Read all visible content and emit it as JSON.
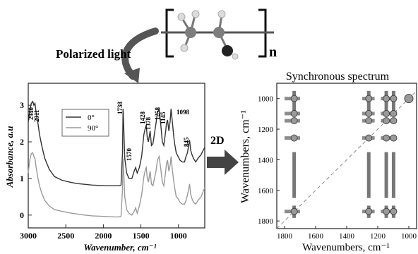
{
  "header": {
    "polarized_label": "Polarized light",
    "repeat_unit_subscript": "n"
  },
  "transition_label": "2D",
  "chart_data": [
    {
      "type": "line",
      "xlabel": "Wavenumber, cm⁻¹",
      "ylabel": "Absorbance, a.u",
      "xlim": [
        3000,
        650
      ],
      "ylim": [
        -0.35,
        3.6
      ],
      "x_ticks": [
        3000,
        2500,
        2000,
        1500,
        1000
      ],
      "y_ticks": [
        0,
        1,
        2,
        3
      ],
      "legend": {
        "placement": "upper-left-inside",
        "entries": [
          "0°",
          "90°"
        ]
      },
      "peak_labels": [
        "2940",
        "2911",
        "1738",
        "1428",
        "1378",
        "1258",
        "1145",
        "1098",
        "1570",
        "845"
      ],
      "series": [
        {
          "name": "0°",
          "color": "#333333",
          "x": [
            3000,
            2980,
            2960,
            2940,
            2925,
            2911,
            2895,
            2870,
            2850,
            2820,
            2780,
            2720,
            2650,
            2550,
            2450,
            2350,
            2250,
            2150,
            2050,
            1950,
            1850,
            1790,
            1765,
            1745,
            1738,
            1730,
            1715,
            1690,
            1660,
            1620,
            1590,
            1570,
            1550,
            1520,
            1490,
            1460,
            1440,
            1428,
            1415,
            1400,
            1378,
            1360,
            1340,
            1300,
            1280,
            1258,
            1235,
            1215,
            1195,
            1170,
            1160,
            1145,
            1128,
            1112,
            1098,
            1080,
            1055,
            1030,
            1005,
            980,
            950,
            920,
            900,
            880,
            865,
            852,
            845,
            835,
            820,
            800,
            770,
            740,
            700,
            650
          ],
          "y": [
            2.55,
            2.85,
            3.05,
            3.1,
            3.0,
            3.05,
            2.8,
            2.5,
            2.2,
            1.9,
            1.55,
            1.25,
            1.05,
            0.95,
            0.9,
            0.86,
            0.84,
            0.82,
            0.81,
            0.8,
            0.8,
            0.8,
            0.82,
            1.7,
            2.9,
            2.5,
            1.55,
            1.15,
            1.0,
            1.0,
            1.2,
            1.3,
            1.15,
            1.3,
            1.6,
            2.2,
            2.4,
            2.45,
            2.1,
            2.0,
            2.3,
            1.9,
            1.95,
            2.5,
            2.8,
            2.9,
            2.45,
            2.0,
            1.9,
            2.3,
            2.5,
            2.6,
            2.3,
            2.55,
            2.9,
            2.5,
            2.0,
            1.7,
            1.6,
            1.5,
            1.45,
            1.45,
            1.6,
            1.7,
            1.9,
            2.05,
            1.9,
            1.75,
            1.65,
            1.55,
            1.45,
            1.55,
            1.65,
            1.85
          ]
        },
        {
          "name": "90°",
          "color": "#9a9a9a",
          "x": [
            3000,
            2980,
            2960,
            2940,
            2925,
            2911,
            2895,
            2870,
            2850,
            2820,
            2780,
            2720,
            2650,
            2550,
            2450,
            2350,
            2250,
            2150,
            2050,
            1950,
            1850,
            1790,
            1765,
            1745,
            1738,
            1730,
            1715,
            1690,
            1660,
            1620,
            1590,
            1570,
            1550,
            1520,
            1490,
            1460,
            1440,
            1428,
            1415,
            1400,
            1378,
            1360,
            1340,
            1300,
            1280,
            1258,
            1235,
            1215,
            1195,
            1170,
            1160,
            1145,
            1128,
            1112,
            1098,
            1080,
            1055,
            1030,
            1005,
            980,
            950,
            920,
            900,
            880,
            865,
            852,
            845,
            835,
            820,
            800,
            770,
            740,
            700,
            650
          ],
          "y": [
            1.15,
            1.5,
            1.68,
            1.7,
            1.6,
            1.55,
            1.3,
            1.0,
            0.8,
            0.6,
            0.4,
            0.25,
            0.15,
            0.1,
            0.06,
            0.03,
            0.0,
            -0.02,
            -0.03,
            -0.04,
            -0.05,
            -0.05,
            -0.03,
            0.7,
            1.55,
            1.25,
            0.5,
            0.15,
            0.05,
            0.0,
            0.1,
            0.2,
            0.05,
            0.25,
            0.55,
            1.05,
            1.25,
            1.3,
            1.0,
            0.9,
            1.2,
            0.85,
            0.8,
            1.2,
            1.5,
            1.6,
            1.25,
            0.9,
            0.8,
            1.2,
            1.4,
            1.5,
            1.2,
            1.35,
            1.6,
            1.2,
            0.8,
            0.5,
            0.45,
            0.35,
            0.3,
            0.3,
            0.4,
            0.55,
            0.7,
            0.85,
            0.7,
            0.55,
            0.45,
            0.35,
            0.3,
            0.4,
            0.5,
            0.75
          ]
        }
      ]
    },
    {
      "type": "heatmap",
      "title": "Synchronous spectrum",
      "xlabel": "Wavenumbers, cm⁻¹",
      "ylabel": "Wavenumbers, cm⁻¹",
      "xlim": [
        1850,
        950
      ],
      "ylim": [
        900,
        1850
      ],
      "x_ticks": [
        1800,
        1600,
        1400,
        1200,
        1000
      ],
      "y_ticks": [
        1000,
        1200,
        1400,
        1600,
        1800
      ],
      "diagonal": "dashed",
      "peak_positions": [
        1738,
        1258,
        1145,
        1098,
        1000
      ],
      "row_bands": [
        1000,
        1098,
        1145,
        1258,
        1738
      ],
      "col_bands": [
        1738,
        1258,
        1145,
        1098
      ]
    }
  ]
}
